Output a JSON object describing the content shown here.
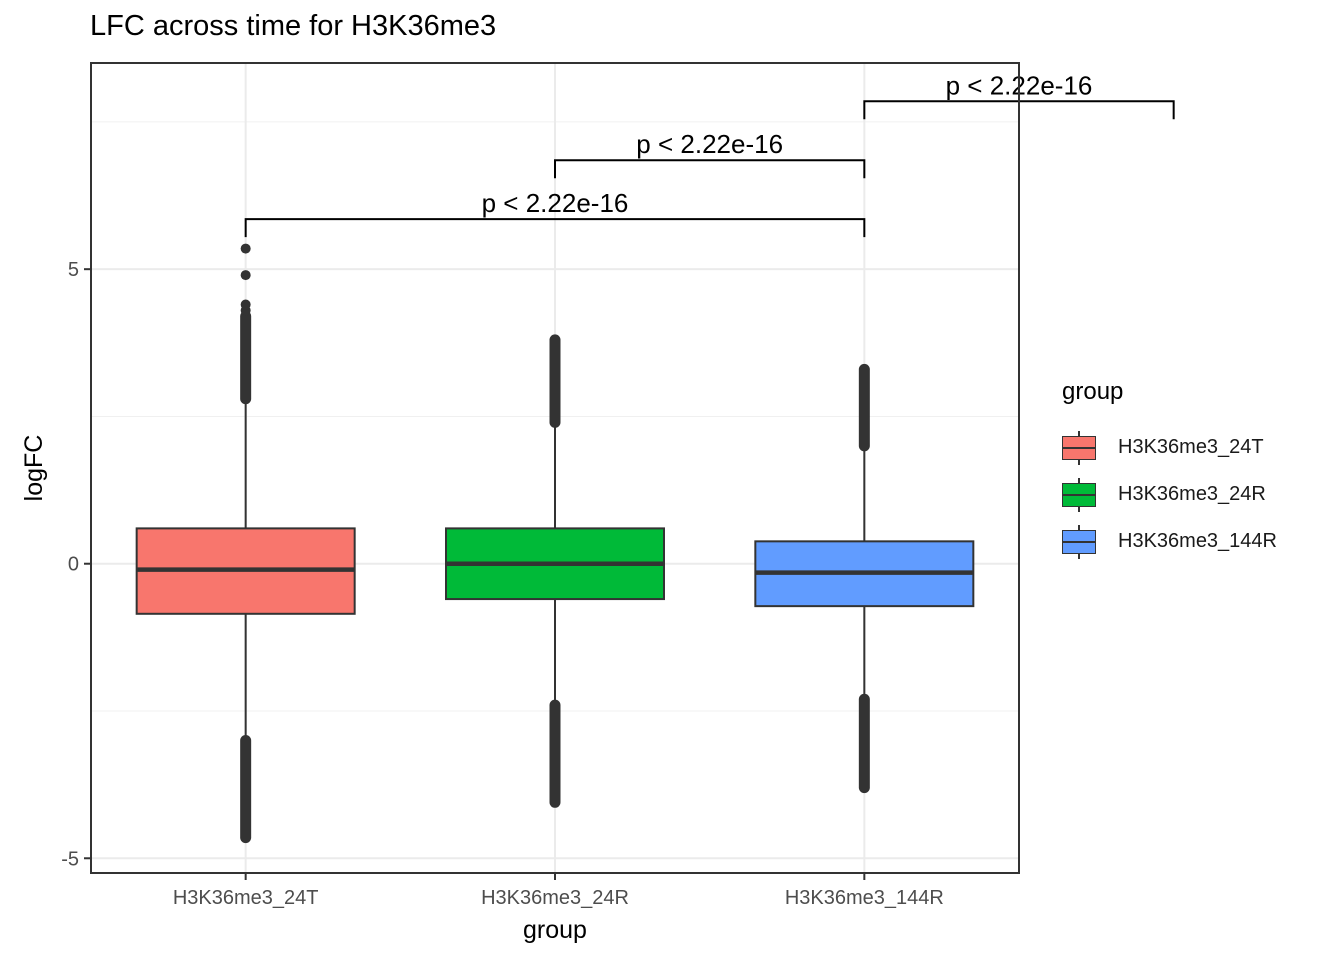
{
  "title": "LFC across time for H3K36me3",
  "legend": {
    "title": "group",
    "items": [
      {
        "label": "H3K36me3_24T",
        "color": "#F8766D"
      },
      {
        "label": "H3K36me3_24R",
        "color": "#00BA38"
      },
      {
        "label": "H3K36me3_144R",
        "color": "#619CFF"
      }
    ]
  },
  "chart_data": {
    "type": "box",
    "title": "LFC across time for H3K36me3",
    "xlabel": "group",
    "ylabel": "logFC",
    "ylim": [
      -5.25,
      8.5
    ],
    "yticks": [
      -5,
      0,
      5
    ],
    "ytick_labels": [
      "-5",
      "0",
      "5"
    ],
    "grid": true,
    "legend_position": "right",
    "categories": [
      "H3K36me3_24T",
      "H3K36me3_24R",
      "H3K36me3_144R"
    ],
    "colors": [
      "#F8766D",
      "#00BA38",
      "#619CFF"
    ],
    "boxes": [
      {
        "q1": -0.85,
        "median": -0.1,
        "q3": 0.6,
        "whisker_low": -3.0,
        "whisker_high": 2.8,
        "outlier_low": [
          -4.65,
          -3.0
        ],
        "outlier_high": [
          2.8,
          4.2
        ],
        "extra_outliers": [
          4.3,
          4.4,
          4.9,
          5.35
        ]
      },
      {
        "q1": -0.6,
        "median": 0.0,
        "q3": 0.6,
        "whisker_low": -2.4,
        "whisker_high": 2.4,
        "outlier_low": [
          -4.05,
          -2.4
        ],
        "outlier_high": [
          2.4,
          3.8
        ],
        "extra_outliers": []
      },
      {
        "q1": -0.72,
        "median": -0.15,
        "q3": 0.38,
        "whisker_low": -2.3,
        "whisker_high": 2.0,
        "outlier_low": [
          -3.8,
          -2.3
        ],
        "outlier_high": [
          2.0,
          3.3
        ],
        "extra_outliers": []
      }
    ],
    "comparisons": [
      {
        "from": 1,
        "to": 2,
        "y": 6.85,
        "label": "p < 2.22e-16"
      },
      {
        "from": 2,
        "to": 3,
        "y": 7.85,
        "label": "p < 2.22e-16"
      },
      {
        "from": 0,
        "to": 2,
        "y": 5.85,
        "label": "p < 2.22e-16"
      }
    ]
  }
}
